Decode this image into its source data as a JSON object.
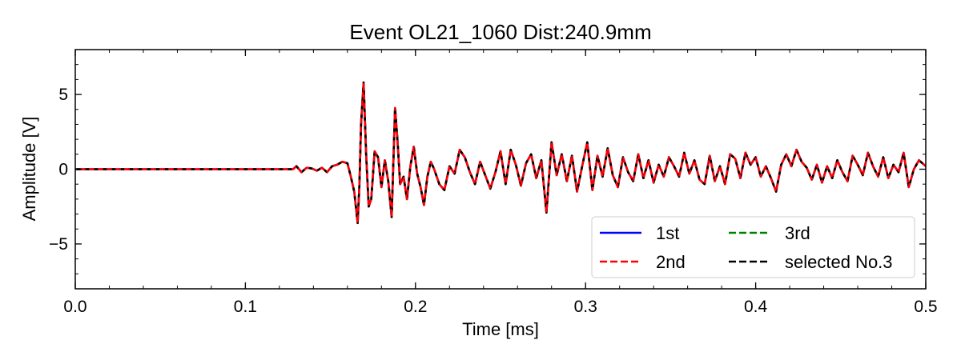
{
  "chart_data": {
    "type": "line",
    "title": "Event OL21_1060 Dist:240.9mm",
    "xlabel": "Time [ms]",
    "ylabel": "Amplitude [V]",
    "xlim": [
      0.0,
      0.5
    ],
    "ylim": [
      -8,
      8
    ],
    "xticks": [
      0.0,
      0.1,
      0.2,
      0.3,
      0.4,
      0.5
    ],
    "xtick_labels": [
      "0.0",
      "0.1",
      "0.2",
      "0.3",
      "0.4",
      "0.5"
    ],
    "yticks": [
      5,
      0,
      -5
    ],
    "ytick_labels": [
      "5",
      "0",
      "−5"
    ],
    "grid": false,
    "legend": {
      "location": "lower-right",
      "columns": 2
    },
    "series": [
      {
        "name": "1st",
        "color": "#0000ff",
        "style": "solid"
      },
      {
        "name": "2nd",
        "color": "#ff0000",
        "style": "dashed"
      },
      {
        "name": "3rd",
        "color": "#008000",
        "style": "dashed"
      },
      {
        "name": "selected No.3",
        "color": "#000000",
        "style": "dashed"
      }
    ],
    "waveform": {
      "x": [
        0.0,
        0.128,
        0.13,
        0.133,
        0.136,
        0.139,
        0.142,
        0.145,
        0.148,
        0.151,
        0.154,
        0.157,
        0.16,
        0.162,
        0.164,
        0.166,
        0.167,
        0.168,
        0.1695,
        0.171,
        0.1725,
        0.174,
        0.176,
        0.178,
        0.18,
        0.182,
        0.184,
        0.186,
        0.188,
        0.1895,
        0.191,
        0.193,
        0.195,
        0.197,
        0.199,
        0.201,
        0.203,
        0.205,
        0.207,
        0.209,
        0.211,
        0.214,
        0.217,
        0.22,
        0.223,
        0.226,
        0.229,
        0.232,
        0.235,
        0.238,
        0.241,
        0.244,
        0.247,
        0.25,
        0.253,
        0.256,
        0.259,
        0.262,
        0.265,
        0.268,
        0.271,
        0.274,
        0.277,
        0.28,
        0.283,
        0.286,
        0.289,
        0.292,
        0.295,
        0.298,
        0.301,
        0.304,
        0.307,
        0.31,
        0.313,
        0.316,
        0.319,
        0.322,
        0.325,
        0.328,
        0.331,
        0.334,
        0.337,
        0.34,
        0.343,
        0.346,
        0.349,
        0.352,
        0.355,
        0.358,
        0.361,
        0.364,
        0.367,
        0.37,
        0.373,
        0.376,
        0.379,
        0.382,
        0.385,
        0.388,
        0.391,
        0.394,
        0.397,
        0.4,
        0.403,
        0.406,
        0.409,
        0.412,
        0.415,
        0.418,
        0.421,
        0.424,
        0.427,
        0.43,
        0.433,
        0.436,
        0.439,
        0.442,
        0.445,
        0.448,
        0.451,
        0.454,
        0.457,
        0.46,
        0.463,
        0.466,
        0.469,
        0.472,
        0.475,
        0.478,
        0.481,
        0.484,
        0.487,
        0.49,
        0.493,
        0.496,
        0.5
      ],
      "y": [
        0.0,
        0.0,
        0.2,
        -0.2,
        0.1,
        0.05,
        -0.1,
        0.1,
        -0.2,
        0.2,
        0.3,
        0.5,
        0.4,
        -0.5,
        -1.5,
        -3.6,
        -1.2,
        3.0,
        5.8,
        1.0,
        -2.5,
        -2.0,
        1.2,
        0.8,
        -1.2,
        0.6,
        -0.8,
        -3.2,
        4.1,
        1.8,
        -1.0,
        -0.5,
        -2.0,
        0.2,
        1.5,
        -0.3,
        -1.2,
        -2.4,
        -0.5,
        0.5,
        0.0,
        -1.0,
        -1.4,
        0.2,
        -0.3,
        1.3,
        0.8,
        -0.2,
        -1.0,
        0.5,
        -0.4,
        -1.3,
        -0.2,
        1.2,
        -1.0,
        1.3,
        0.3,
        -1.1,
        0.4,
        1.0,
        -0.6,
        0.6,
        -2.9,
        1.8,
        -0.4,
        1.0,
        -0.8,
        0.9,
        -1.5,
        0.2,
        1.8,
        -1.4,
        0.9,
        -0.5,
        1.4,
        -0.4,
        -1.2,
        0.8,
        -0.2,
        -0.8,
        1.0,
        -0.6,
        0.6,
        -0.9,
        0.3,
        -0.5,
        0.8,
        0.2,
        -0.5,
        1.1,
        -0.3,
        0.6,
        -0.7,
        -1.0,
        0.9,
        -0.8,
        0.2,
        -1.0,
        1.0,
        0.7,
        -0.6,
        1.1,
        0.3,
        0.8,
        -0.5,
        0.2,
        -0.6,
        -1.5,
        0.3,
        1.0,
        0.2,
        1.3,
        0.5,
        0.1,
        -0.7,
        0.3,
        -0.9,
        0.2,
        -0.6,
        0.6,
        -0.2,
        -0.8,
        0.9,
        0.3,
        -0.4,
        1.1,
        0.2,
        -0.5,
        0.8,
        -0.6,
        0.3,
        -0.2,
        1.1,
        -1.2,
        0.0,
        0.6,
        0.2
      ]
    }
  }
}
